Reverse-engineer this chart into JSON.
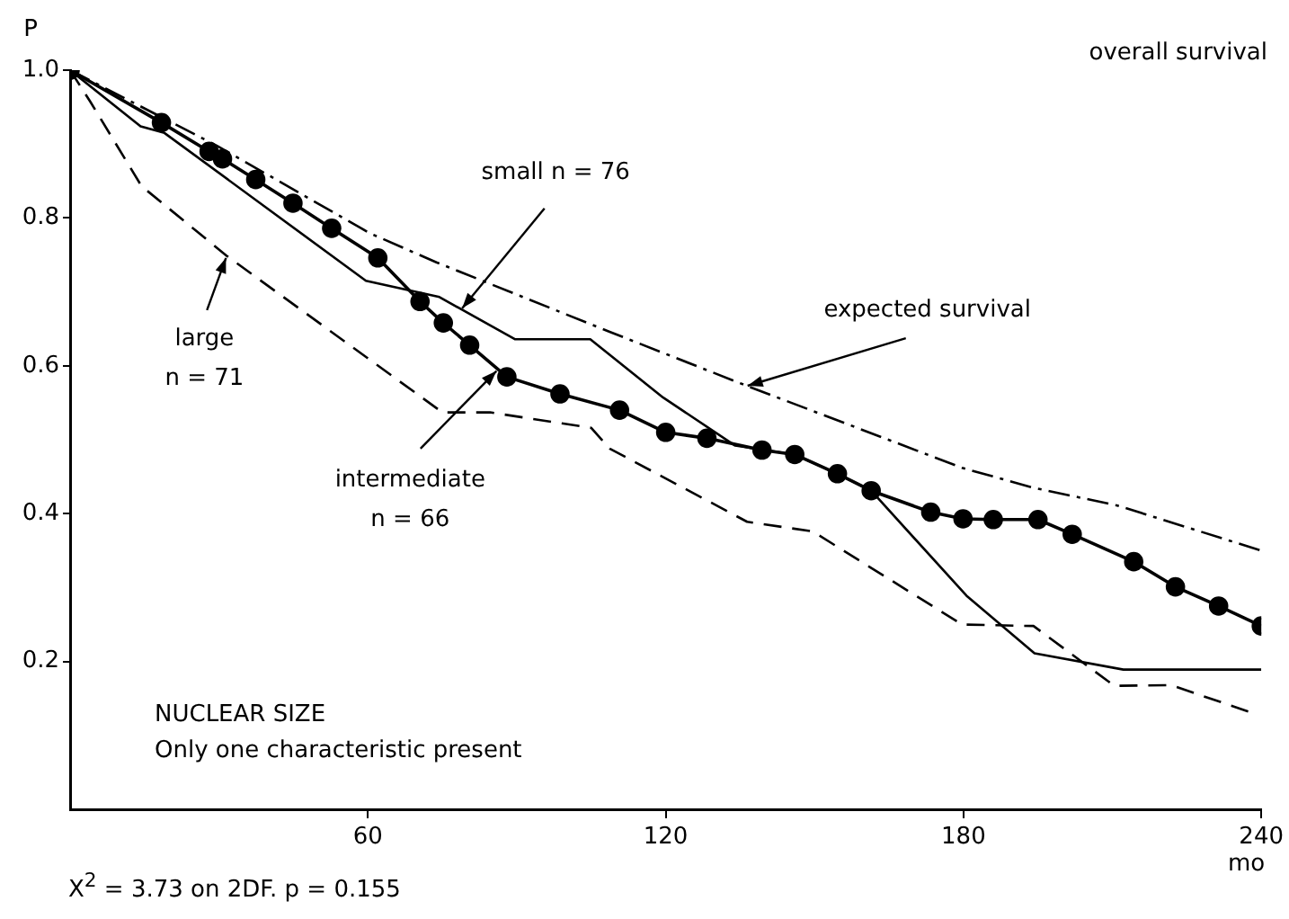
{
  "chart_data": {
    "type": "line",
    "xlabel": "mo",
    "ylabel": "P",
    "xlim": [
      0,
      240
    ],
    "xticks": [
      60,
      120,
      180,
      240
    ],
    "ylim": [
      0,
      1.0
    ],
    "yticks": [
      0.2,
      0.4,
      0.6,
      0.8,
      {
        "value": 1,
        "label": "1.0"
      }
    ],
    "grid": false,
    "legend": false,
    "series": [
      {
        "color": "#000000",
        "line_style": "solid",
        "marker": "circle",
        "x": [
          0,
          18.4,
          28,
          30.7,
          37.4,
          44.9,
          52.7,
          62,
          70.5,
          75.2,
          80.5,
          88,
          98.7,
          110.7,
          120,
          128.3,
          139.4,
          146,
          154.6,
          161.4,
          173.4,
          179.9,
          186,
          195,
          201.9,
          214.3,
          222.7,
          231.4,
          240
        ],
        "values": [
          1.0,
          0.929,
          0.89,
          0.88,
          0.852,
          0.82,
          0.786,
          0.746,
          0.687,
          0.658,
          0.628,
          0.585,
          0.562,
          0.54,
          0.51,
          0.502,
          0.486,
          0.48,
          0.454,
          0.431,
          0.402,
          0.393,
          0.392,
          0.392,
          0.372,
          0.335,
          0.301,
          0.275,
          0.248
        ]
      },
      {
        "color": "#000000",
        "line_style": "solid",
        "marker": "none",
        "x": [
          0,
          14.2,
          19,
          59.6,
          74.4,
          89.6,
          104.8,
          119.5,
          134,
          146,
          154.6,
          161.4,
          180.6,
          194.3,
          212.2,
          240
        ],
        "values": [
          1.0,
          0.924,
          0.915,
          0.715,
          0.693,
          0.636,
          0.636,
          0.557,
          0.492,
          0.48,
          0.454,
          0.431,
          0.289,
          0.211,
          0.189,
          0.189
        ]
      },
      {
        "color": "#000000",
        "line_style": "dashed",
        "marker": "none",
        "x": [
          0,
          4,
          14.4,
          31.7,
          75,
          84.6,
          105,
          108.7,
          136.4,
          149.6,
          179.7,
          194.1,
          210.4,
          221.8,
          238.4
        ],
        "values": [
          1.0,
          0.958,
          0.843,
          0.748,
          0.537,
          0.537,
          0.516,
          0.488,
          0.389,
          0.376,
          0.25,
          0.248,
          0.167,
          0.168,
          0.13
        ]
      },
      {
        "color": "#000000",
        "line_style": "dashdot",
        "marker": "none",
        "x": [
          0,
          29.5,
          60.5,
          73.8,
          108.7,
          136.3,
          179.7,
          194.1,
          211,
          240
        ],
        "values": [
          1.0,
          0.898,
          0.779,
          0.74,
          0.646,
          0.573,
          0.462,
          0.435,
          0.411,
          0.35
        ]
      }
    ],
    "annotations": [
      "overall survival",
      "NUCLEAR SIZE\nOnly one characteristic present",
      "X$^{2}$ = 3.73 on 2DF.  p = 0.155",
      {
        "text": "small n = 76",
        "x": 79,
        "y": 0.678
      },
      {
        "text": "large\nn = 71",
        "x": 31.4,
        "y": 0.746
      },
      {
        "text": "intermediate\nn = 66",
        "x": 85.9,
        "y": 0.593
      },
      {
        "text": "expected survival",
        "x": 136.5,
        "y": 0.573
      }
    ]
  }
}
